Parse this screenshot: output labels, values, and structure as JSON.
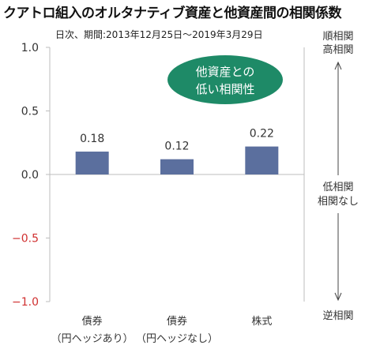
{
  "title": "クアトロ組入のオルタナティブ資産と他資産間の相関係数",
  "subtitle": "日次、期間:2013年12月25日～2019年3月29日",
  "callout": {
    "line1": "他資産との",
    "line2": "低い相関性",
    "color": "#1e8a67"
  },
  "right_scale": {
    "top_line1": "順相関",
    "top_line2": "高相関",
    "mid_line1": "低相関",
    "mid_line2": "相関なし",
    "bottom": "逆相関"
  },
  "chart_data": {
    "type": "bar",
    "categories": [
      [
        "債券",
        "（円ヘッジあり）"
      ],
      [
        "債券",
        "（円ヘッジなし）"
      ],
      [
        "株式"
      ]
    ],
    "values": [
      0.18,
      0.12,
      0.22
    ],
    "data_labels": [
      "0.18",
      "0.12",
      "0.22"
    ],
    "yticks": [
      1.0,
      0.5,
      0.0,
      -0.5,
      -1.0
    ],
    "ytick_labels": [
      "1.0",
      "0.5",
      "0.0",
      "−0.5",
      "−1.0"
    ],
    "ylim": [
      -1.0,
      1.0
    ],
    "grid": false,
    "bar_color": "#5b6f9e",
    "negative_tick_color": "#d03030"
  }
}
